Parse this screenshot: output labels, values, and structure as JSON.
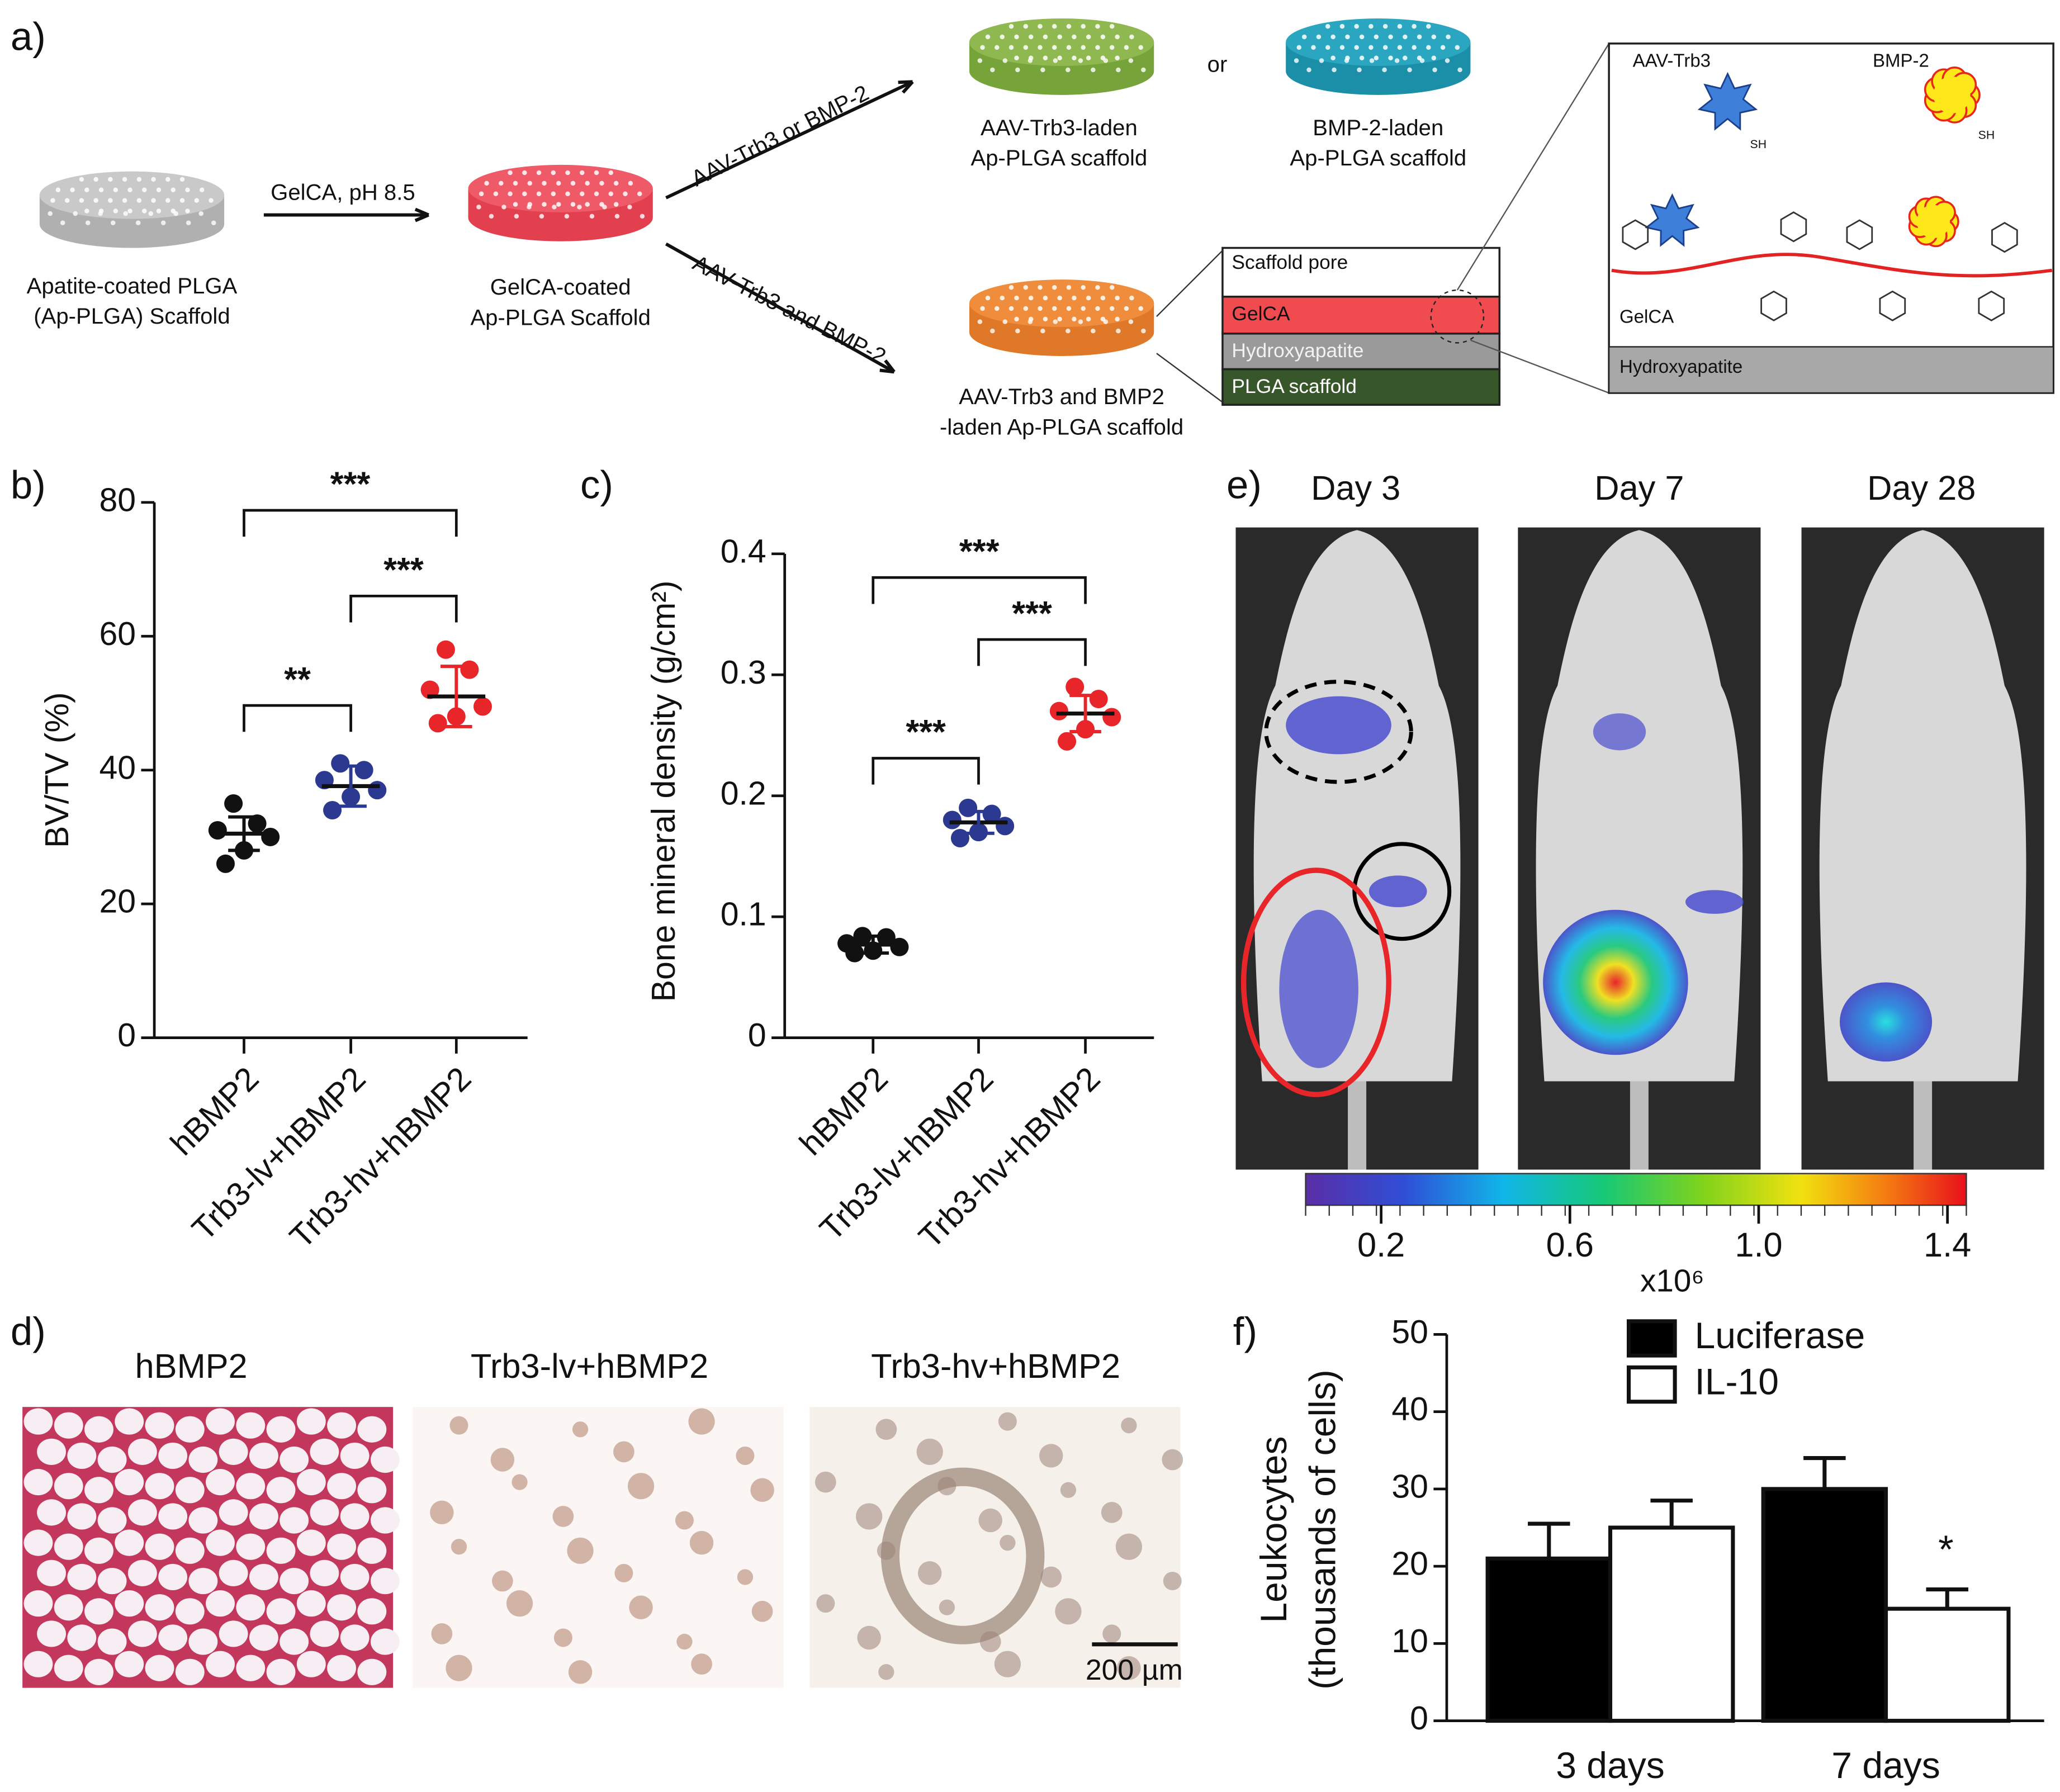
{
  "panel_a": {
    "label": "a)",
    "plga_scaffold": [
      "Apatite-coated PLGA",
      "(Ap-PLGA) Scaffold"
    ],
    "step_1": "GelCA, pH 8.5",
    "gelca_scaffold": [
      "GelCA-coated",
      "Ap-PLGA Scaffold"
    ],
    "branch_up": "AAV-Trb3 or BMP-2",
    "branch_down": "AAV-Trb3 and BMP-2",
    "trb3_scaffold": [
      "AAV-Trb3-laden",
      "Ap-PLGA scaffold"
    ],
    "or": "or",
    "bmp2_scaffold": [
      "BMP-2-laden",
      "Ap-PLGA scaffold"
    ],
    "combo_scaffold": [
      "AAV-Trb3 and BMP2",
      "-laden Ap-PLGA scaffold"
    ],
    "layers": [
      "Scaffold pore",
      "GelCA",
      "Hydroxyapatite",
      "PLGA scaffold"
    ],
    "zoom": {
      "aav": "AAV-Trb3",
      "bmp": "BMP-2",
      "thiol": "SH",
      "gelca": "GelCA",
      "ha": "Hydroxyapatite"
    }
  },
  "panel_d": {
    "label": "d)",
    "titles": [
      "hBMP2",
      "Trb3-lv+hBMP2",
      "Trb3-hv+hBMP2"
    ],
    "scale_bar": "200 µm"
  },
  "panel_e": {
    "label": "e)",
    "days": [
      "Day 3",
      "Day 7",
      "Day 28"
    ],
    "colorbar": {
      "clim": [
        0.04,
        1.44
      ],
      "ticks": [
        0.2,
        0.6,
        {
          "value": 1,
          "label": "1.0"
        },
        1.4
      ],
      "unit": "x10⁶"
    }
  },
  "chart_data": [
    {
      "type": "dot",
      "label": "b)",
      "ylabel": "BV/TV (%)",
      "categories": [
        "hBMP2",
        "Trb3-lv+hBMP2",
        "Trb3-hv+hBMP2"
      ],
      "groups": [
        {
          "color": "#111111",
          "points": [
            35,
            32,
            31,
            30,
            28,
            26
          ],
          "mean": 30.5,
          "sd": 2.5
        },
        {
          "color": "#2b3990",
          "points": [
            41,
            40,
            38.5,
            37,
            36,
            34
          ],
          "mean": 37.6,
          "sd": 3
        },
        {
          "color": "#e8262a",
          "points": [
            58,
            55,
            52,
            49.5,
            48,
            47
          ],
          "mean": 51,
          "sd": 4.5
        }
      ],
      "significance": [
        "***",
        "***",
        "**"
      ],
      "ylim": [
        0,
        80
      ],
      "yticks": [
        0,
        20,
        40,
        60,
        80
      ]
    },
    {
      "type": "dot",
      "label": "c)",
      "ylabel": "Bone mineral density (g/cm²)",
      "categories": [
        "hBMP2",
        "Trb3-lv+hBMP2",
        "Trb3-hv+hBMP2"
      ],
      "groups": [
        {
          "color": "#111111",
          "points": [
            0.084,
            0.083,
            0.078,
            0.075,
            0.072,
            0.07
          ],
          "mean": 0.077,
          "sd": 0.007
        },
        {
          "color": "#2b3990",
          "points": [
            0.19,
            0.185,
            0.18,
            0.175,
            0.17,
            0.165
          ],
          "mean": 0.178,
          "sd": 0.009
        },
        {
          "color": "#e8262a",
          "points": [
            0.29,
            0.28,
            0.27,
            0.265,
            0.255,
            0.245
          ],
          "mean": 0.268,
          "sd": 0.015
        }
      ],
      "significance": [
        "***",
        "***",
        "***"
      ],
      "ylim": [
        0,
        0.4
      ],
      "yticks": [
        0,
        0.1,
        0.2,
        0.3,
        0.4
      ]
    },
    {
      "type": "bar",
      "label": "f)",
      "ylabel": [
        "Leukocytes",
        "(thousands of cells)"
      ],
      "categories": [
        "3 days",
        "7 days"
      ],
      "series": [
        {
          "name": "Luciferase",
          "color": "#000000",
          "values": [
            21,
            30
          ],
          "errors": [
            4.5,
            4
          ]
        },
        {
          "name": "IL-10",
          "color": "#ffffff",
          "values": [
            25,
            14.5
          ],
          "errors": [
            3.5,
            2.5
          ]
        }
      ],
      "annotation": "*",
      "ylim": [
        0,
        50
      ],
      "yticks": [
        0,
        10,
        20,
        30,
        40,
        50
      ]
    }
  ]
}
